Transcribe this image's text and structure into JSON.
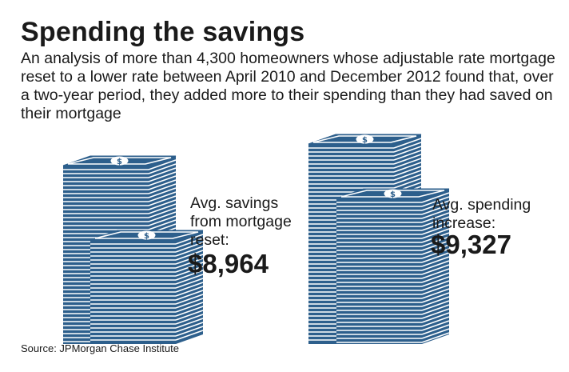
{
  "title": "Spending the savings",
  "subtitle": "An analysis of more than 4,300 homeowners whose adjustable rate mortgage reset to a lower rate between April 2010 and December 2012 found that, over a two-year period, they added more to their spending than they had saved on their mortgage",
  "source": "Source: JPMorgan Chase Institute",
  "colors": {
    "stack_blue": "#2d5f8c",
    "bill_light": "#ffffff",
    "text": "#1a1a1a"
  },
  "chart_data": {
    "type": "bar",
    "categories": [
      "Avg. savings from mortgage reset",
      "Avg. spending increase"
    ],
    "values": [
      8964,
      9327
    ],
    "panels": [
      {
        "label_lines": [
          "Avg. savings",
          "from mortgage",
          "reset:"
        ],
        "amount": "$8,964"
      },
      {
        "label_lines": [
          "Avg. spending",
          "increase:"
        ],
        "amount": "$9,327"
      }
    ]
  }
}
